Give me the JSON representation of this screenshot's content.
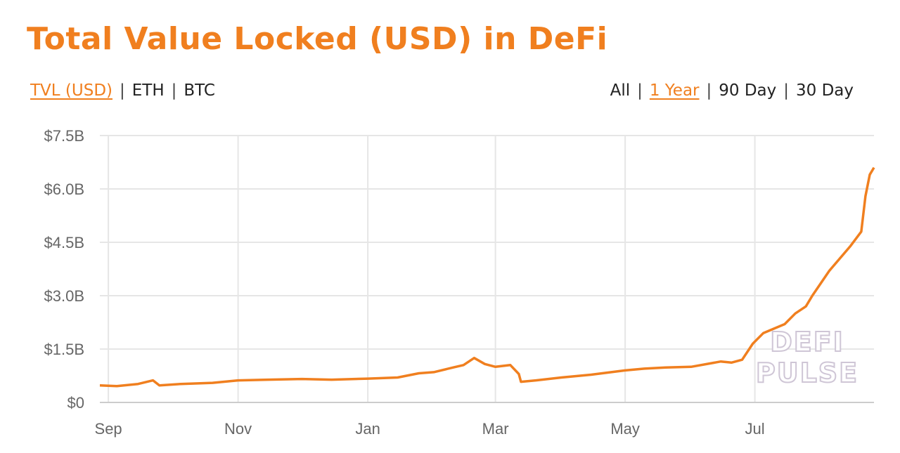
{
  "title": "Total Value Locked (USD) in DeFi",
  "metric_tabs": [
    {
      "label": "TVL (USD)",
      "active": true
    },
    {
      "label": "ETH",
      "active": false
    },
    {
      "label": "BTC",
      "active": false
    }
  ],
  "range_tabs": [
    {
      "label": "All",
      "active": false
    },
    {
      "label": "1 Year",
      "active": true
    },
    {
      "label": "90 Day",
      "active": false
    },
    {
      "label": "30 Day",
      "active": false
    }
  ],
  "separator": "|",
  "watermark": [
    "DEFI",
    "PULSE"
  ],
  "colors": {
    "accent": "#f07f1f",
    "line": "#f07f1f",
    "grid": "#e6e6e6",
    "axis_text": "#666666"
  },
  "chart_data": {
    "type": "line",
    "title": "Total Value Locked (USD) in DeFi",
    "xlabel": "",
    "ylabel": "",
    "x_range": [
      "2019-08-28",
      "2020-08-26"
    ],
    "ylim": [
      0,
      7.5
    ],
    "y_unit": "billion USD",
    "y_ticks": [
      0,
      1.5,
      3.0,
      4.5,
      6.0,
      7.5
    ],
    "y_tick_labels": [
      "$0",
      "$1.5B",
      "$3.0B",
      "$4.5B",
      "$6.0B",
      "$7.5B"
    ],
    "x_ticks": [
      "2019-09-01",
      "2019-11-01",
      "2020-01-01",
      "2020-03-01",
      "2020-05-01",
      "2020-07-01"
    ],
    "x_tick_labels": [
      "Sep",
      "Nov",
      "Jan",
      "Mar",
      "May",
      "Jul"
    ],
    "grid": true,
    "legend": "none",
    "series": [
      {
        "x": [
          "2019-08-28",
          "2019-09-05",
          "2019-09-15",
          "2019-09-22",
          "2019-09-25",
          "2019-10-05",
          "2019-10-20",
          "2019-11-01",
          "2019-11-15",
          "2019-12-01",
          "2019-12-15",
          "2020-01-01",
          "2020-01-15",
          "2020-01-25",
          "2020-02-01",
          "2020-02-10",
          "2020-02-15",
          "2020-02-20",
          "2020-02-25",
          "2020-03-01",
          "2020-03-08",
          "2020-03-12",
          "2020-03-13",
          "2020-03-20",
          "2020-04-01",
          "2020-04-15",
          "2020-05-01",
          "2020-05-10",
          "2020-05-20",
          "2020-06-01",
          "2020-06-15",
          "2020-06-20",
          "2020-06-25",
          "2020-06-30",
          "2020-07-05",
          "2020-07-15",
          "2020-07-20",
          "2020-07-25",
          "2020-07-28",
          "2020-08-05",
          "2020-08-15",
          "2020-08-20",
          "2020-08-22",
          "2020-08-24",
          "2020-08-26"
        ],
        "values": [
          0.48,
          0.46,
          0.52,
          0.62,
          0.48,
          0.52,
          0.55,
          0.62,
          0.64,
          0.66,
          0.64,
          0.67,
          0.7,
          0.82,
          0.85,
          0.98,
          1.05,
          1.25,
          1.08,
          1.0,
          1.05,
          0.8,
          0.58,
          0.62,
          0.7,
          0.78,
          0.9,
          0.95,
          0.98,
          1.0,
          1.15,
          1.12,
          1.2,
          1.65,
          1.95,
          2.2,
          2.5,
          2.7,
          3.0,
          3.7,
          4.4,
          4.8,
          5.8,
          6.4,
          6.6
        ]
      }
    ]
  }
}
